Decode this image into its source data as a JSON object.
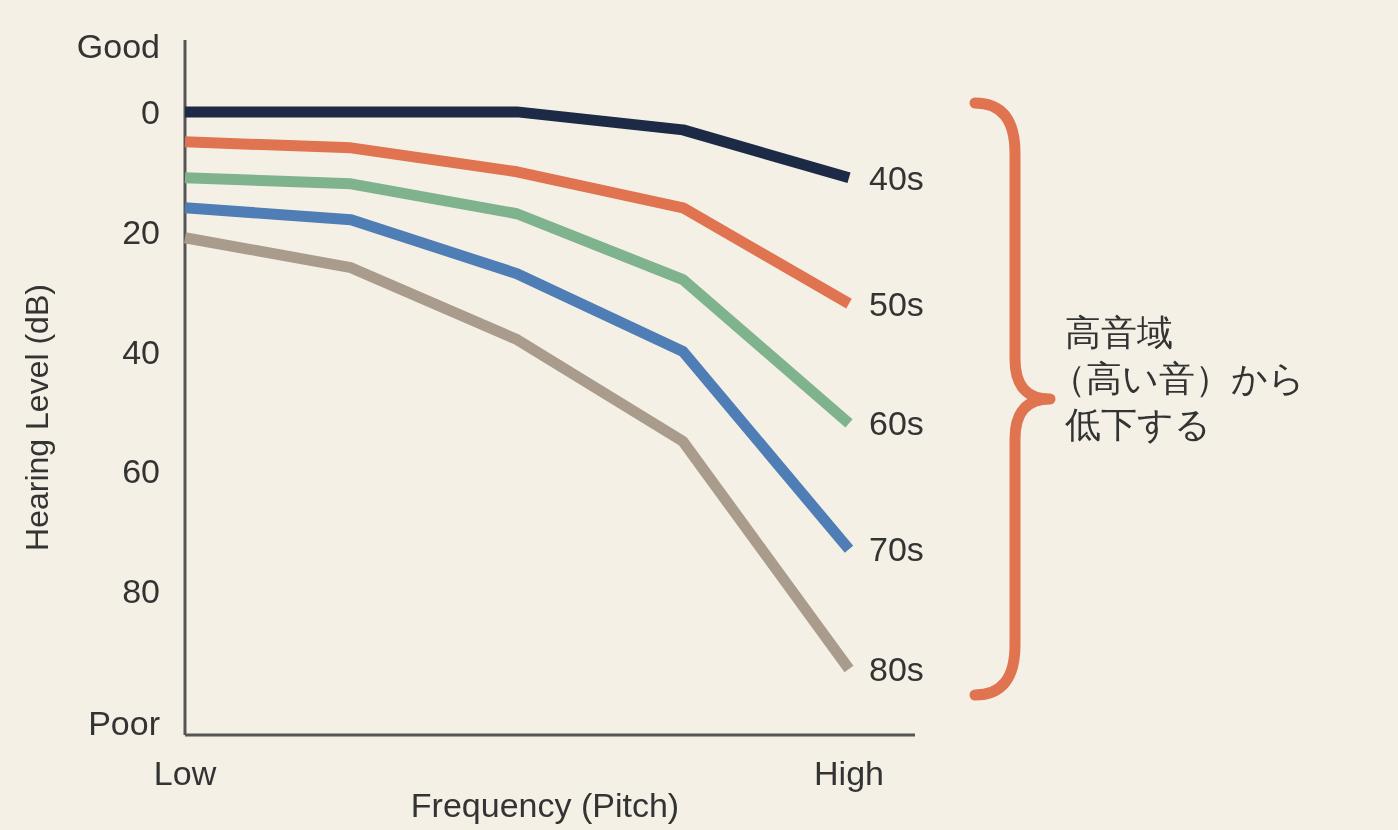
{
  "chart_data": {
    "type": "line",
    "xlabel": "Frequency (Pitch)",
    "ylabel": "Hearing Level (dB)",
    "categories": [
      "Low",
      null,
      null,
      null,
      "High"
    ],
    "ylim": [
      104,
      -12
    ],
    "yticks": [
      {
        "value": -11,
        "label": "Good"
      },
      0,
      20,
      40,
      60,
      80,
      {
        "value": 102,
        "label": "Poor"
      }
    ],
    "grid": false,
    "series": [
      {
        "name": "40s",
        "color": "#1c2a45",
        "values": [
          0,
          0,
          0,
          3,
          11
        ]
      },
      {
        "name": "50s",
        "color": "#e07350",
        "values": [
          5,
          6,
          10,
          16,
          32
        ]
      },
      {
        "name": "60s",
        "color": "#7fb38e",
        "values": [
          11,
          12,
          17,
          28,
          52
        ]
      },
      {
        "name": "70s",
        "color": "#4f7db5",
        "values": [
          16,
          18,
          27,
          40,
          73
        ]
      },
      {
        "name": "80s",
        "color": "#a99c8c",
        "values": [
          21,
          26,
          38,
          55,
          93
        ]
      }
    ],
    "annotations": [
      "高音域（高い音）から低下する"
    ]
  }
}
